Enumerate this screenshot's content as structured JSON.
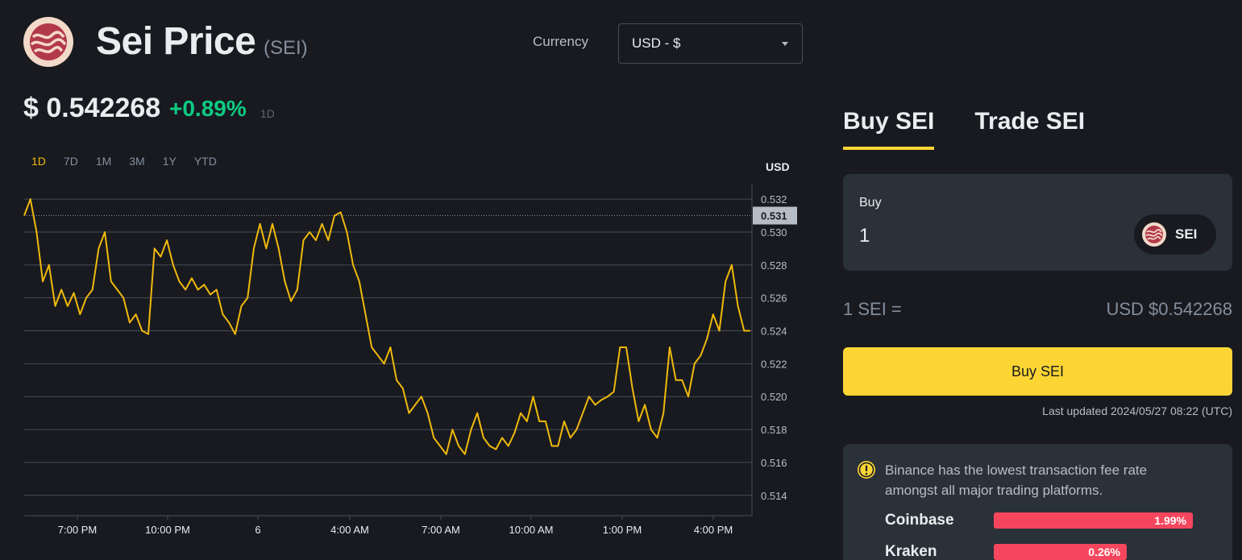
{
  "header": {
    "title": "Sei Price",
    "ticker": "(SEI)",
    "currency_label": "Currency",
    "currency_value": "USD - $"
  },
  "price": {
    "value": "$ 0.542268",
    "change": "+0.89%",
    "period": "1D"
  },
  "ranges": [
    "1D",
    "7D",
    "1M",
    "3M",
    "1Y",
    "YTD"
  ],
  "active_range": "1D",
  "chart_data": {
    "type": "line",
    "ylabel": "USD",
    "ylim": [
      0.5135,
      0.5323
    ],
    "yticks": [
      "0.532",
      "0.530",
      "0.528",
      "0.526",
      "0.524",
      "0.522",
      "0.520",
      "0.518",
      "0.516",
      "0.514"
    ],
    "xticks": [
      "7:00 PM",
      "10:00 PM",
      "6",
      "4:00 AM",
      "7:00 AM",
      "10:00 AM",
      "1:00 PM",
      "4:00 PM"
    ],
    "reference_line": "0.531",
    "color": "#f0b90b",
    "series": [
      {
        "values": [
          0.531,
          0.532,
          0.53,
          0.527,
          0.528,
          0.5255,
          0.5265,
          0.5255,
          0.5263,
          0.525,
          0.526,
          0.5265,
          0.529,
          0.53,
          0.527,
          0.5265,
          0.526,
          0.5245,
          0.525,
          0.524,
          0.5238,
          0.529,
          0.5285,
          0.5295,
          0.528,
          0.527,
          0.5265,
          0.5272,
          0.5265,
          0.5268,
          0.5262,
          0.5265,
          0.525,
          0.5245,
          0.5238,
          0.5255,
          0.526,
          0.529,
          0.5305,
          0.529,
          0.5305,
          0.529,
          0.527,
          0.5258,
          0.5265,
          0.5295,
          0.53,
          0.5295,
          0.5305,
          0.5295,
          0.531,
          0.5312,
          0.53,
          0.528,
          0.527,
          0.525,
          0.523,
          0.5225,
          0.522,
          0.523,
          0.521,
          0.5205,
          0.519,
          0.5195,
          0.52,
          0.519,
          0.5175,
          0.517,
          0.5165,
          0.518,
          0.517,
          0.5165,
          0.518,
          0.519,
          0.5175,
          0.517,
          0.5168,
          0.5175,
          0.517,
          0.5178,
          0.519,
          0.5185,
          0.52,
          0.5185,
          0.5185,
          0.517,
          0.517,
          0.5185,
          0.5175,
          0.518,
          0.519,
          0.52,
          0.5195,
          0.5198,
          0.52,
          0.5203,
          0.523,
          0.523,
          0.5205,
          0.5185,
          0.5195,
          0.518,
          0.5175,
          0.519,
          0.523,
          0.521,
          0.521,
          0.52,
          0.522,
          0.5225,
          0.5235,
          0.525,
          0.524,
          0.527,
          0.528,
          0.5255,
          0.524,
          0.524
        ]
      }
    ]
  },
  "trade": {
    "tabs": [
      "Buy SEI",
      "Trade SEI"
    ],
    "buy_label": "Buy",
    "amount": "1",
    "coin": "SEI",
    "rate_left": "1 SEI =",
    "rate_right": "USD $0.542268",
    "button": "Buy SEI",
    "updated": "Last updated 2024/05/27 08:22 (UTC)"
  },
  "fees": {
    "message": "Binance has the lowest transaction fee rate amongst all major trading platforms.",
    "rows": [
      {
        "name": "Coinbase",
        "rate": "1.99%",
        "level": 1.99
      },
      {
        "name": "Kraken",
        "rate": "0.26%",
        "level": 0.26
      }
    ]
  },
  "colors": {
    "background": "#181a20",
    "panel": "#2b3139",
    "accent": "#fcd535",
    "line": "#f0b90b",
    "up": "#0ecb81",
    "down": "#f6465d"
  }
}
